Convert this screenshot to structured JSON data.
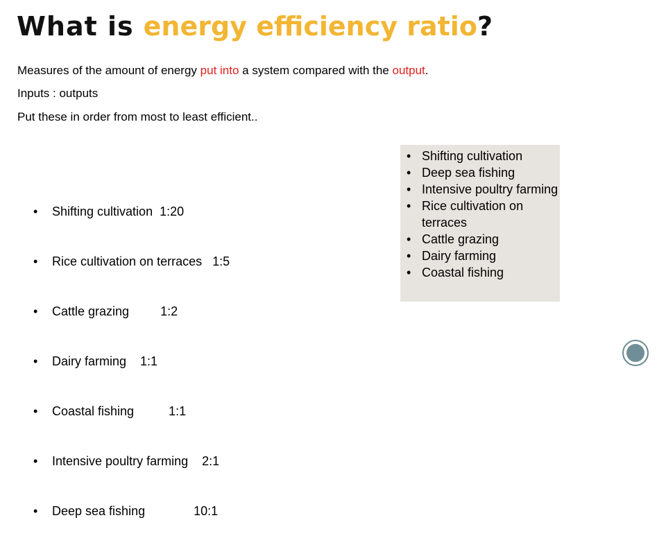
{
  "title": {
    "part1": "What is",
    "part2": "energy efficiency ratio",
    "part3": "?"
  },
  "intro": {
    "prefix": "Measures of the amount of energy ",
    "highlight1": "put into",
    "middle": " a system compared with the ",
    "highlight2": "output",
    "suffix": "."
  },
  "line2": "Inputs : outputs",
  "line3": "Put these in order from most to least efficient..",
  "left_list": [
    "Shifting cultivation  1:20",
    "Rice cultivation on terraces   1:5",
    "Cattle grazing         1:2",
    "Dairy farming    1:1",
    "Coastal fishing          1:1",
    "Intensive poultry farming    2:1",
    "Deep sea fishing              10:1"
  ],
  "right_list": [
    "Shifting cultivation",
    "Deep sea fishing",
    "Intensive poultry farming",
    "Rice cultivation on terraces",
    "Cattle grazing",
    "Dairy farming",
    "Coastal fishing"
  ],
  "colors": {
    "accent_gold": "#f2b634",
    "highlight_red": "#e0201b",
    "box_background": "#e7e3de"
  }
}
